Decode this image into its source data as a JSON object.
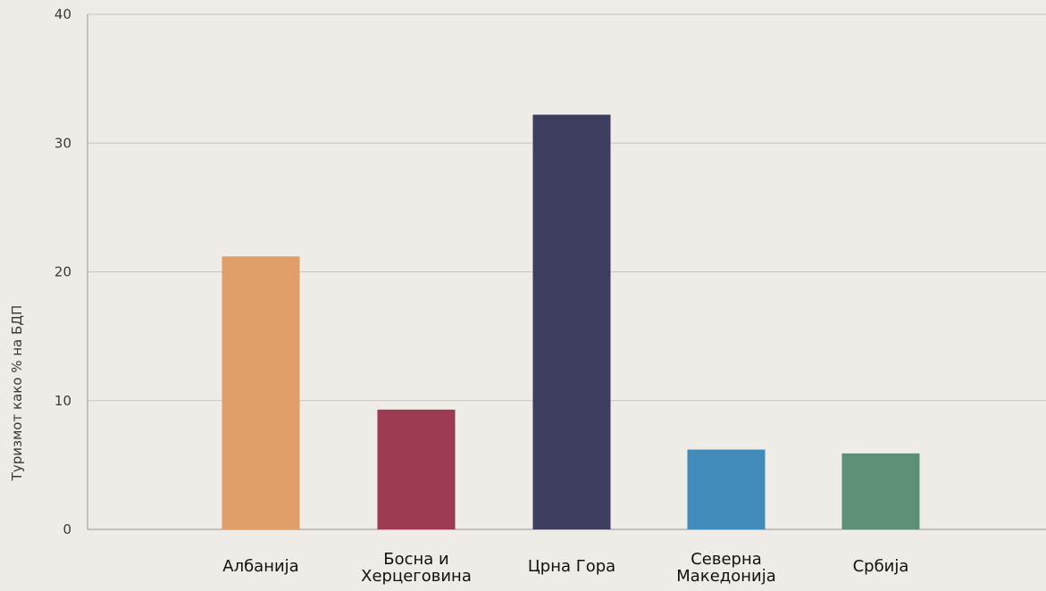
{
  "chart_data": {
    "type": "bar",
    "categories": [
      "Албанија",
      "Босна и Херцеговина",
      "Црна Гора",
      "Северна Македонија",
      "Србија"
    ],
    "category_lines": [
      [
        "Албанија"
      ],
      [
        "Босна и",
        "Херцеговина"
      ],
      [
        "Црна Гора"
      ],
      [
        "Северна",
        "Македонија"
      ],
      [
        "Србија"
      ]
    ],
    "values": [
      21.2,
      9.3,
      32.2,
      6.2,
      5.9
    ],
    "colors": [
      "#e09f69",
      "#9c3a52",
      "#3d3d60",
      "#418bba",
      "#5b8f76"
    ],
    "ylabel": "Туризмот како % на БДП",
    "xlabel": "",
    "ylim": [
      0,
      40
    ],
    "yticks": [
      0,
      10,
      20,
      30,
      40
    ],
    "ytick_labels": [
      "0",
      "10",
      "20",
      "30",
      "40"
    ],
    "grid": true
  },
  "style": {
    "background": "#efebe6",
    "grid_color": "#c8c4bf",
    "axis_color": "#9a9690"
  }
}
